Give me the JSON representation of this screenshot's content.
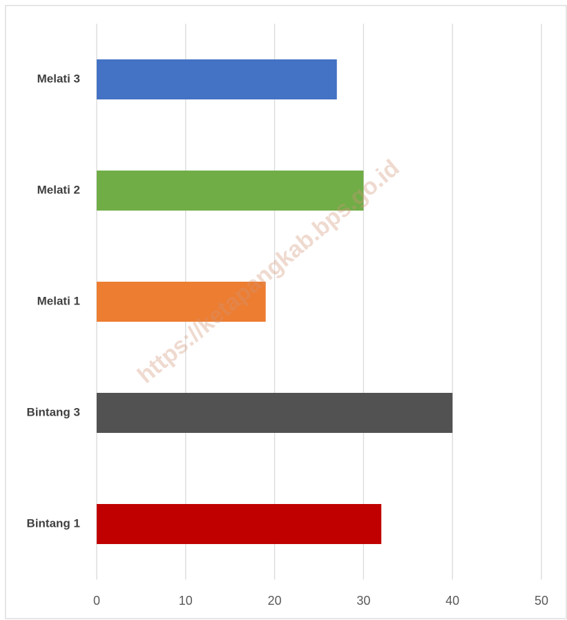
{
  "chart_data": {
    "type": "barh",
    "categories": [
      "Bintang 1",
      "Bintang 3",
      "Melati 1",
      "Melati 2",
      "Melati 3"
    ],
    "values": [
      32,
      40,
      19,
      30,
      27
    ],
    "colors": [
      "#c00000",
      "#525252",
      "#ed7d31",
      "#70ad47",
      "#4472c4"
    ],
    "xlim": [
      0,
      50
    ],
    "xticks": [
      0,
      10,
      20,
      30,
      40,
      50
    ],
    "grid": true,
    "watermark": "https://ketapangkab.bps.go.id"
  }
}
